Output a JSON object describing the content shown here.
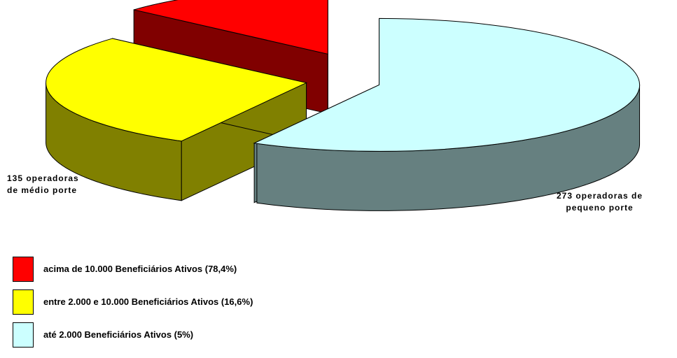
{
  "chart_data": {
    "type": "pie",
    "categories": [
      "acima de 10.000 Beneficiários Ativos (78,4%)",
      "entre 2.000 e  10.000  Beneficiários Ativos (16,6%)",
      "até 2.000  Beneficiários Ativos (5%)"
    ],
    "values": [
      63,
      135,
      273
    ],
    "value_labels": [
      null,
      "135 operadoras\nde médio porte",
      "273 operadoras de\npequeno porte"
    ],
    "colors": [
      "#ff0000",
      "#ffff00",
      "#ccffff"
    ],
    "legend": "bottom-left"
  }
}
